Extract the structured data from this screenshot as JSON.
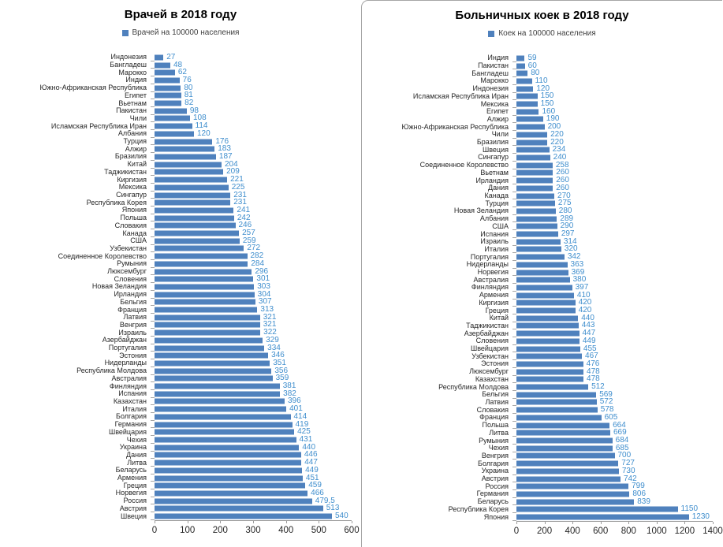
{
  "colors": {
    "bar": "#4F81BD",
    "value_label": "#3F8ECD",
    "category_label": "#262626",
    "axis_line": "#9B9B9B",
    "panel_border": "#A6A6A6",
    "title": "#000000"
  },
  "chart_data": [
    {
      "type": "bar",
      "orientation": "horizontal",
      "title": "Врачей в 2018 году",
      "legend": "Врачей на 100000 населения",
      "xlabel": "",
      "ylabel": "",
      "xlim": [
        0,
        600
      ],
      "xticks": [
        0,
        100,
        200,
        300,
        400,
        500,
        600
      ],
      "grid": false,
      "legend_position": "top",
      "categories": [
        "Индонезия",
        "Бангладеш",
        "Марокко",
        "Индия",
        "Южно-Африканская Республика",
        "Египет",
        "Вьетнам",
        "Пакистан",
        "Чили",
        "Исламская Республика Иран",
        "Албания",
        "Турция",
        "Алжир",
        "Бразилия",
        "Китай",
        "Таджикистан",
        "Киргизия",
        "Мексика",
        "Сингапур",
        "Республика Корея",
        "Япония",
        "Польша",
        "Словакия",
        "Канада",
        "США",
        "Узбекистан",
        "Соединенное Королевство",
        "Румыния",
        "Люксембург",
        "Словения",
        "Новая Зеландия",
        "Ирландия",
        "Бельгия",
        "Франция",
        "Латвия",
        "Венгрия",
        "Израиль",
        "Азербайджан",
        "Португалия",
        "Эстония",
        "Нидерланды",
        "Республика Молдова",
        "Австралия",
        "Финляндия",
        "Испания",
        "Казахстан",
        "Италия",
        "Болгария",
        "Германия",
        "Швейцария",
        "Чехия",
        "Украина",
        "Дания",
        "Литва",
        "Беларусь",
        "Армения",
        "Греция",
        "Норвегия",
        "Россия",
        "Австрия",
        "Швеция"
      ],
      "values": [
        27,
        48,
        62,
        76,
        80,
        81,
        82,
        98,
        108,
        114,
        120,
        176,
        183,
        187,
        204,
        209,
        221,
        225,
        231,
        231,
        241,
        242,
        246,
        257,
        259,
        272,
        282,
        284,
        296,
        301,
        303,
        304,
        307,
        313,
        321,
        321,
        322,
        329,
        334,
        346,
        351,
        356,
        359,
        381,
        382,
        396,
        401,
        414,
        419,
        425,
        431,
        440,
        446,
        447,
        449,
        451,
        459,
        466,
        479.5,
        513,
        540
      ],
      "value_labels": [
        "27",
        "48",
        "62",
        "76",
        "80",
        "81",
        "82",
        "98",
        "108",
        "114",
        "120",
        "176",
        "183",
        "187",
        "204",
        "209",
        "221",
        "225",
        "231",
        "231",
        "241",
        "242",
        "246",
        "257",
        "259",
        "272",
        "282",
        "284",
        "296",
        "301",
        "303",
        "304",
        "307",
        "313",
        "321",
        "321",
        "322",
        "329",
        "334",
        "346",
        "351",
        "356",
        "359",
        "381",
        "382",
        "396",
        "401",
        "414",
        "419",
        "425",
        "431",
        "440",
        "446",
        "447",
        "449",
        "451",
        "459",
        "466",
        "479,5",
        "513",
        "540"
      ]
    },
    {
      "type": "bar",
      "orientation": "horizontal",
      "title": "Больничных коек в 2018 году",
      "legend": "Коек на 100000 населения",
      "xlabel": "",
      "ylabel": "",
      "xlim": [
        0,
        1400
      ],
      "xticks": [
        0,
        200,
        400,
        600,
        800,
        1000,
        1200,
        1400
      ],
      "grid": false,
      "legend_position": "top",
      "categories": [
        "Индия",
        "Пакистан",
        "Бангладеш",
        "Марокко",
        "Индонезия",
        "Исламская Республика Иран",
        "Мексика",
        "Египет",
        "Алжир",
        "Южно-Африканская Республика",
        "Чили",
        "Бразилия",
        "Швеция",
        "Сингапур",
        "Соединенное Королевство",
        "Вьетнам",
        "Ирландия",
        "Дания",
        "Канада",
        "Турция",
        "Новая Зеландия",
        "Албания",
        "США",
        "Испания",
        "Израиль",
        "Италия",
        "Португалия",
        "Нидерланды",
        "Норвегия",
        "Австралия",
        "Финляндия",
        "Армения",
        "Киргизия",
        "Греция",
        "Китай",
        "Таджикистан",
        "Азербайджан",
        "Словения",
        "Швейцария",
        "Узбекистан",
        "Эстония",
        "Люксембург",
        "Казахстан",
        "Республика Молдова",
        "Бельгия",
        "Латвия",
        "Словакия",
        "Франция",
        "Польша",
        "Литва",
        "Румыния",
        "Чехия",
        "Венгрия",
        "Болгария",
        "Украина",
        "Австрия",
        "Россия",
        "Германия",
        "Беларусь",
        "Республика Корея",
        "Япония"
      ],
      "values": [
        59,
        60,
        80,
        110,
        120,
        150,
        150,
        160,
        190,
        200,
        220,
        220,
        234,
        240,
        258,
        260,
        260,
        260,
        270,
        275,
        280,
        289,
        290,
        297,
        314,
        320,
        342,
        363,
        369,
        380,
        397,
        410,
        420,
        420,
        440,
        443,
        447,
        449,
        455,
        467,
        476,
        478,
        478,
        512,
        569,
        572,
        578,
        605,
        664,
        669,
        684,
        685,
        700,
        727,
        730,
        742,
        799,
        806,
        839,
        1150,
        1230
      ],
      "value_labels": [
        "59",
        "60",
        "80",
        "110",
        "120",
        "150",
        "150",
        "160",
        "190",
        "200",
        "220",
        "220",
        "234",
        "240",
        "258",
        "260",
        "260",
        "260",
        "270",
        "275",
        "280",
        "289",
        "290",
        "297",
        "314",
        "320",
        "342",
        "363",
        "369",
        "380",
        "397",
        "410",
        "420",
        "420",
        "440",
        "443",
        "447",
        "449",
        "455",
        "467",
        "476",
        "478",
        "478",
        "512",
        "569",
        "572",
        "578",
        "605",
        "664",
        "669",
        "684",
        "685",
        "700",
        "727",
        "730",
        "742",
        "799",
        "806",
        "839",
        "1150",
        "1230"
      ]
    }
  ]
}
